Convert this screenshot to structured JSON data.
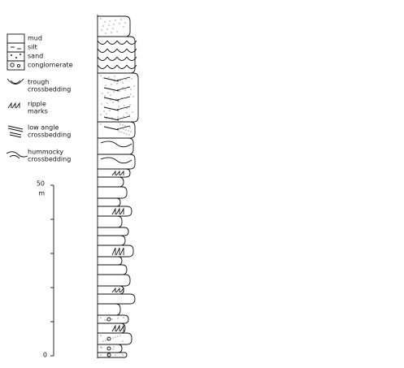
{
  "legend": [
    {
      "lines": [
        "mud"
      ]
    },
    {
      "lines": [
        "silt"
      ]
    },
    {
      "lines": [
        "sand"
      ]
    },
    {
      "lines": [
        "conglomerate"
      ]
    },
    {
      "lines": [
        "trough",
        "crossbedding"
      ]
    },
    {
      "lines": [
        "ripple",
        "marks"
      ]
    },
    {
      "lines": [
        "low angle",
        "crossbedding"
      ]
    },
    {
      "lines": [
        "hummocky",
        "crossbedding"
      ]
    }
  ],
  "scale": {
    "top_label": "50",
    "unit": "m",
    "bottom_label": "0"
  }
}
